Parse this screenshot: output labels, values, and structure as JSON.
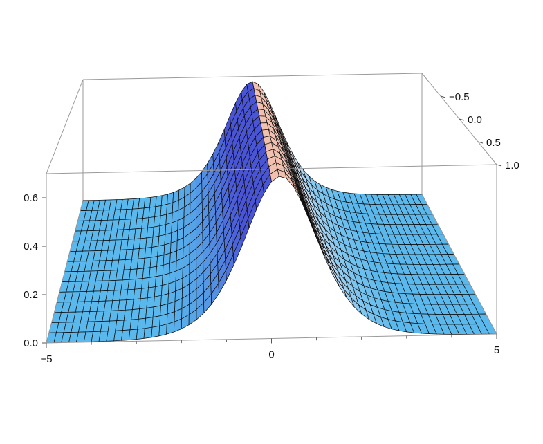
{
  "chart_data": {
    "type": "surface",
    "title": "",
    "xlabel": "",
    "ylabel": "",
    "zlabel": "",
    "x_range": [
      -5,
      5
    ],
    "y_range": [
      -1,
      1
    ],
    "z_range": [
      0,
      0.7
    ],
    "x_ticks": [
      {
        "value": -5,
        "label": "−5"
      },
      {
        "value": 0,
        "label": "0"
      },
      {
        "value": 5,
        "label": "5"
      }
    ],
    "y_ticks": [
      {
        "value": -0.5,
        "label": "−0.5"
      },
      {
        "value": 0.0,
        "label": "0.0"
      },
      {
        "value": 0.5,
        "label": "0.5"
      },
      {
        "value": 1.0,
        "label": "1.0"
      }
    ],
    "z_ticks": [
      {
        "value": 0.0,
        "label": "0.0"
      },
      {
        "value": 0.2,
        "label": "0.2"
      },
      {
        "value": 0.4,
        "label": "0.4"
      },
      {
        "value": 0.6,
        "label": "0.6"
      }
    ],
    "surface": {
      "shape": "sech-squared ridge along y",
      "amplitude": 0.67,
      "center_at_y_back": 0.0,
      "center_at_y_front": 0.2,
      "width": 1.1
    },
    "grid": false,
    "legend": "none",
    "colors": {
      "base": "#5ab8ec",
      "ridge_left": "#4a55d6",
      "ridge_right": "#f2bba6",
      "mesh": "#0a0a0a",
      "box": "#9a9a9a"
    }
  }
}
